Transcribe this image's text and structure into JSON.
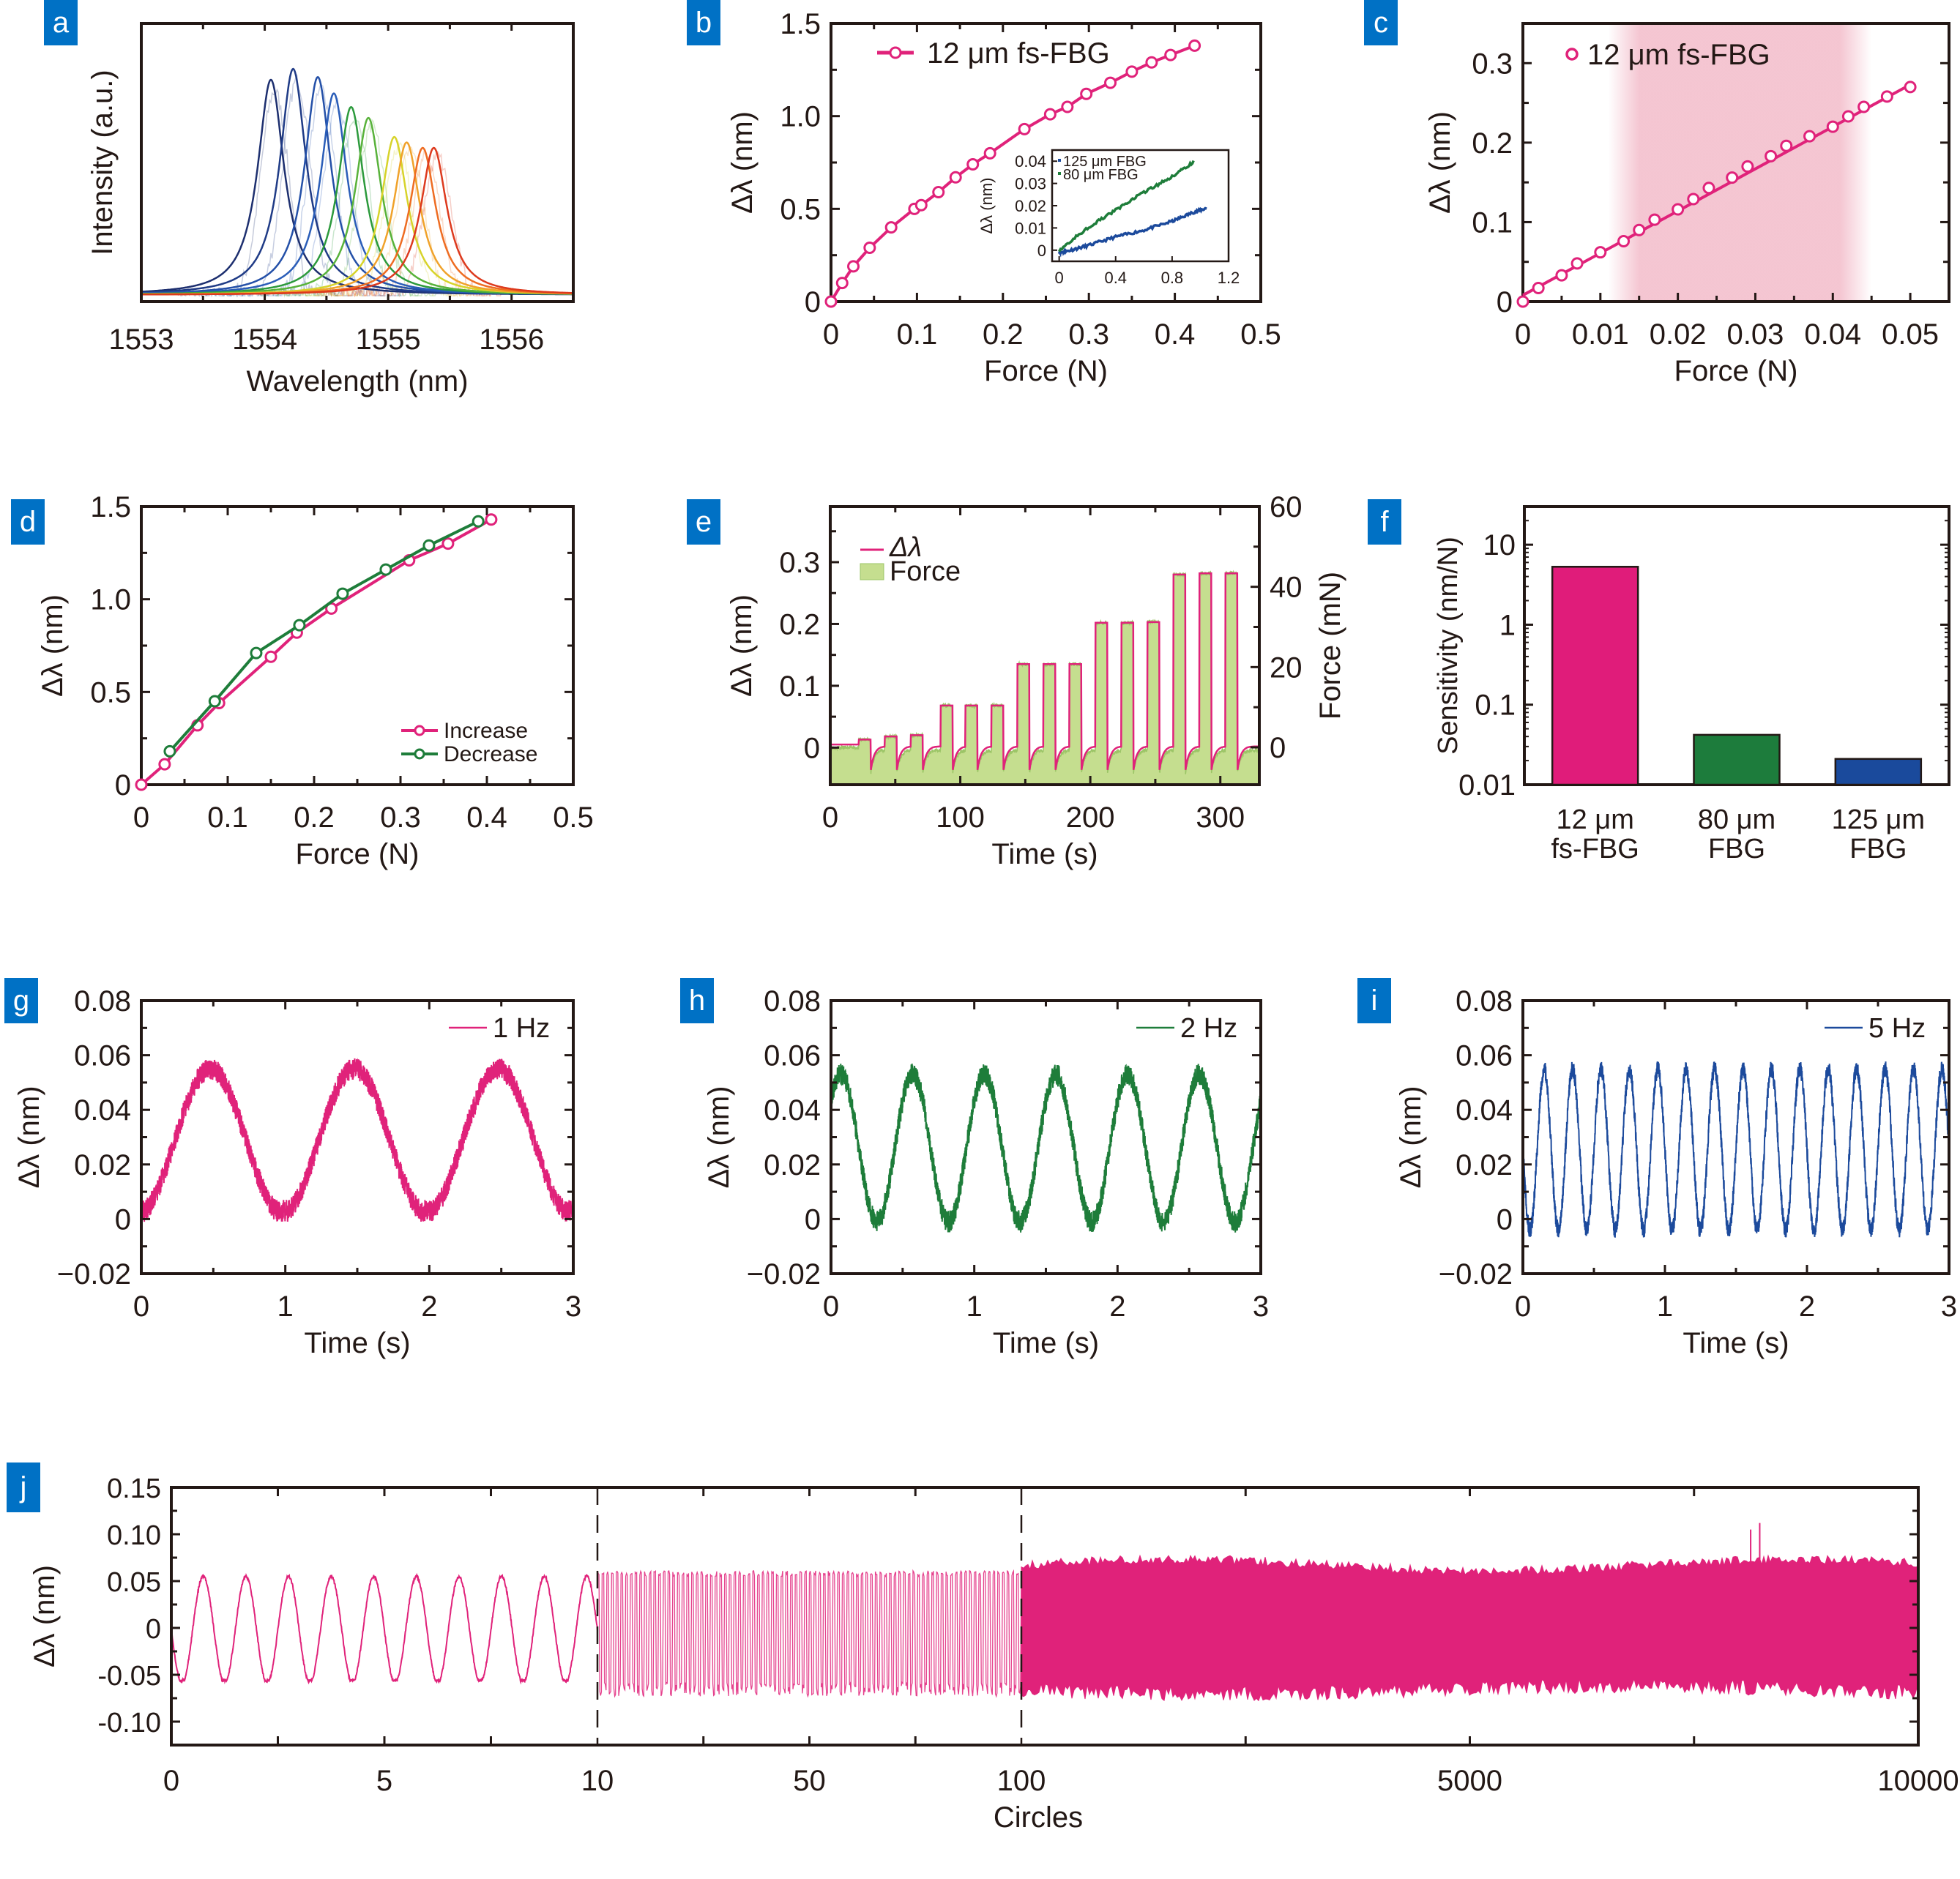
{
  "colors": {
    "badge": "#0071c5",
    "pink": "#e0227a",
    "green": "#1e7d3a",
    "blue": "#1c4a9c",
    "force_fill": "#c5de8f",
    "force_edge": "#9cc567",
    "axis": "#231815",
    "shade": "#f2b7c6"
  },
  "chart_data": [
    {
      "id": "a",
      "type": "line",
      "badge": "a",
      "title": "",
      "xlabel": "Wavelength (nm)",
      "ylabel": "Intensity (a.u.)",
      "xlim": [
        1553,
        1556.5
      ],
      "ylim": [
        0,
        1.0
      ],
      "xticks": [
        1553,
        1554,
        1555,
        1556
      ],
      "xtick_labels": [
        "1553",
        "1554",
        "1555",
        "1556"
      ],
      "yticks_shown": false,
      "series": [
        {
          "name": "spectrum-1",
          "center": 1554.05,
          "peak": 0.79,
          "color": "#1d2f6f"
        },
        {
          "name": "spectrum-2",
          "center": 1554.23,
          "peak": 0.83,
          "color": "#1f3b86"
        },
        {
          "name": "spectrum-3",
          "center": 1554.43,
          "peak": 0.8,
          "color": "#2450a8"
        },
        {
          "name": "spectrum-4",
          "center": 1554.56,
          "peak": 0.74,
          "color": "#2a5db8"
        },
        {
          "name": "spectrum-5",
          "center": 1554.7,
          "peak": 0.69,
          "color": "#2c9a3c"
        },
        {
          "name": "spectrum-6",
          "center": 1554.84,
          "peak": 0.65,
          "color": "#58b23a"
        },
        {
          "name": "spectrum-7",
          "center": 1555.05,
          "peak": 0.58,
          "color": "#d7d32a"
        },
        {
          "name": "spectrum-8",
          "center": 1555.15,
          "peak": 0.56,
          "color": "#f0a22a"
        },
        {
          "name": "spectrum-9",
          "center": 1555.28,
          "peak": 0.54,
          "color": "#ee6c22"
        },
        {
          "name": "spectrum-10",
          "center": 1555.37,
          "peak": 0.54,
          "color": "#dd3a1e"
        }
      ],
      "width_nm": 0.13
    },
    {
      "id": "b",
      "type": "line",
      "badge": "b",
      "xlabel": "Force (N)",
      "ylabel": "Δλ (nm)",
      "xlim": [
        0,
        0.5
      ],
      "ylim": [
        0,
        1.5
      ],
      "xticks": [
        0,
        0.1,
        0.2,
        0.3,
        0.4,
        0.5
      ],
      "xtick_labels": [
        "0",
        "0.1",
        "0.2",
        "0.3",
        "0.4",
        "0.5"
      ],
      "yticks": [
        0,
        0.5,
        1.0,
        1.5
      ],
      "ytick_labels": [
        "0",
        "0.5",
        "1.0",
        "1.5"
      ],
      "legend": {
        "label": "12 μm fs-FBG",
        "position": "top-left"
      },
      "series": [
        {
          "name": "12 μm fs-FBG",
          "x": [
            0,
            0.013,
            0.026,
            0.045,
            0.07,
            0.097,
            0.105,
            0.125,
            0.145,
            0.165,
            0.185,
            0.225,
            0.255,
            0.275,
            0.297,
            0.325,
            0.35,
            0.373,
            0.395,
            0.423
          ],
          "y": [
            0,
            0.1,
            0.19,
            0.29,
            0.4,
            0.5,
            0.52,
            0.59,
            0.67,
            0.74,
            0.8,
            0.93,
            1.01,
            1.05,
            1.12,
            1.18,
            1.24,
            1.29,
            1.33,
            1.38
          ]
        }
      ],
      "inset": {
        "xlabel": "",
        "ylabel": "Δλ (nm)",
        "xlim": [
          -0.05,
          1.2
        ],
        "ylim": [
          -0.005,
          0.045
        ],
        "xticks": [
          0,
          0.4,
          0.8,
          1.2
        ],
        "xtick_labels": [
          "0",
          "0.4",
          "0.8",
          "1.2"
        ],
        "yticks": [
          0,
          0.01,
          0.02,
          0.03,
          0.04
        ],
        "ytick_labels": [
          "0",
          "0.01",
          "0.02",
          "0.03",
          "0.04"
        ],
        "legend": [
          {
            "label": "125 μm FBG",
            "color": "#1c4a9c"
          },
          {
            "label": "80 μm FBG",
            "color": "#1e7d3a"
          }
        ],
        "series": [
          {
            "name": "125 μm FBG",
            "x": [
              0,
              0.05,
              0.2,
              0.4,
              0.6,
              0.8,
              0.95,
              1.05
            ],
            "y": [
              -0.001,
              -0.0005,
              0.002,
              0.006,
              0.009,
              0.013,
              0.017,
              0.019
            ]
          },
          {
            "name": "80 μm FBG",
            "x": [
              0,
              0.2,
              0.4,
              0.6,
              0.8,
              0.96
            ],
            "y": [
              0,
              0.01,
              0.018,
              0.026,
              0.033,
              0.04
            ]
          }
        ]
      }
    },
    {
      "id": "c",
      "type": "scatter",
      "badge": "c",
      "xlabel": "Force (N)",
      "ylabel": "Δλ (nm)",
      "xlim": [
        0,
        0.055
      ],
      "ylim": [
        0,
        0.35
      ],
      "xticks": [
        0,
        0.01,
        0.02,
        0.03,
        0.04,
        0.05
      ],
      "xtick_labels": [
        "0",
        "0.01",
        "0.02",
        "0.03",
        "0.04",
        "0.05"
      ],
      "yticks": [
        0,
        0.1,
        0.2,
        0.3
      ],
      "ytick_labels": [
        "0",
        "0.1",
        "0.2",
        "0.3"
      ],
      "legend": {
        "label": "12 μm fs-FBG",
        "position": "top-left"
      },
      "shaded_region": [
        0.011,
        0.045
      ],
      "fit": {
        "slope": 5.3,
        "intercept": 0.008
      },
      "series": [
        {
          "name": "12 μm fs-FBG",
          "x": [
            0,
            0.002,
            0.005,
            0.007,
            0.01,
            0.013,
            0.015,
            0.017,
            0.02,
            0.022,
            0.024,
            0.027,
            0.029,
            0.032,
            0.034,
            0.037,
            0.04,
            0.042,
            0.044,
            0.047,
            0.05
          ],
          "y": [
            0,
            0.017,
            0.033,
            0.048,
            0.062,
            0.076,
            0.09,
            0.103,
            0.116,
            0.129,
            0.143,
            0.156,
            0.17,
            0.183,
            0.196,
            0.208,
            0.22,
            0.233,
            0.245,
            0.258,
            0.27
          ]
        }
      ]
    },
    {
      "id": "d",
      "type": "line",
      "badge": "d",
      "xlabel": "Force (N)",
      "ylabel": "Δλ (nm)",
      "xlim": [
        0,
        0.5
      ],
      "ylim": [
        0,
        1.5
      ],
      "xticks": [
        0,
        0.1,
        0.2,
        0.3,
        0.4,
        0.5
      ],
      "xtick_labels": [
        "0",
        "0.1",
        "0.2",
        "0.3",
        "0.4",
        "0.5"
      ],
      "yticks": [
        0,
        0.5,
        1.0,
        1.5
      ],
      "ytick_labels": [
        "0",
        "0.5",
        "1.0",
        "1.5"
      ],
      "legend_position": "bottom-right",
      "series": [
        {
          "name": "Increase",
          "color": "#e0227a",
          "x": [
            0,
            0.027,
            0.065,
            0.09,
            0.15,
            0.18,
            0.22,
            0.31,
            0.355,
            0.405
          ],
          "y": [
            0,
            0.11,
            0.32,
            0.44,
            0.69,
            0.82,
            0.95,
            1.21,
            1.3,
            1.43
          ]
        },
        {
          "name": "Decrease",
          "color": "#1e7d3a",
          "x": [
            0.033,
            0.085,
            0.133,
            0.183,
            0.233,
            0.283,
            0.333,
            0.39
          ],
          "y": [
            0.18,
            0.45,
            0.71,
            0.86,
            1.03,
            1.16,
            1.29,
            1.42
          ]
        }
      ]
    },
    {
      "id": "e",
      "type": "area",
      "badge": "e",
      "xlabel": "Time (s)",
      "ylabel": "Δλ (nm)",
      "ylabel_right": "Force (mN)",
      "xlim": [
        0,
        330
      ],
      "ylim": [
        -0.06,
        0.39
      ],
      "ylim_right": [
        -9.3,
        60
      ],
      "xticks": [
        0,
        100,
        200,
        300
      ],
      "xtick_labels": [
        "0",
        "100",
        "200",
        "300"
      ],
      "yticks": [
        0,
        0.1,
        0.2,
        0.3
      ],
      "ytick_labels": [
        "0",
        "0.1",
        "0.2",
        "0.3"
      ],
      "yticks_right": [
        0,
        20,
        40,
        60
      ],
      "ytick_labels_right": [
        "0",
        "20",
        "40",
        "60"
      ],
      "legend": [
        {
          "label": "Δλ",
          "color": "#e0227a",
          "kind": "line"
        },
        {
          "label": "Force",
          "color": "#2e8a3c",
          "kind": "fill"
        }
      ],
      "pulses": [
        {
          "start": 22,
          "end": 31,
          "value": 0.013
        },
        {
          "start": 42,
          "end": 51,
          "value": 0.018
        },
        {
          "start": 62,
          "end": 71,
          "value": 0.02
        },
        {
          "start": 85,
          "end": 94,
          "value": 0.068
        },
        {
          "start": 104,
          "end": 113,
          "value": 0.068
        },
        {
          "start": 124,
          "end": 133,
          "value": 0.068
        },
        {
          "start": 144,
          "end": 153,
          "value": 0.135
        },
        {
          "start": 164,
          "end": 173,
          "value": 0.135
        },
        {
          "start": 184,
          "end": 193,
          "value": 0.135
        },
        {
          "start": 204,
          "end": 213,
          "value": 0.202
        },
        {
          "start": 224,
          "end": 233,
          "value": 0.202
        },
        {
          "start": 244,
          "end": 253,
          "value": 0.203
        },
        {
          "start": 264,
          "end": 273,
          "value": 0.28
        },
        {
          "start": 284,
          "end": 293,
          "value": 0.282
        },
        {
          "start": 304,
          "end": 313,
          "value": 0.282
        }
      ]
    },
    {
      "id": "f",
      "type": "bar",
      "badge": "f",
      "xlabel": "",
      "ylabel": "Sensitivity (nm/N)",
      "yscale": "log",
      "ylim": [
        0.01,
        30
      ],
      "yticks": [
        0.01,
        0.1,
        1,
        10
      ],
      "ytick_labels": [
        "0.01",
        "0.1",
        "1",
        "10"
      ],
      "categories": [
        "12 μm fs-FBG",
        "80 μm FBG",
        "125 μm FBG"
      ],
      "category_lines": [
        [
          "12 μm",
          "fs-FBG"
        ],
        [
          "80 μm",
          "FBG"
        ],
        [
          "125 μm",
          "FBG"
        ]
      ],
      "values": [
        5.3,
        0.042,
        0.021
      ],
      "bar_colors": [
        "#e01c7a",
        "#1d7c3c",
        "#1a4a9c"
      ]
    },
    {
      "id": "g",
      "type": "line",
      "badge": "g",
      "xlabel": "Time (s)",
      "ylabel": "Δλ (nm)",
      "xlim": [
        0,
        3
      ],
      "ylim": [
        -0.02,
        0.08
      ],
      "xticks": [
        0,
        1,
        2,
        3
      ],
      "xtick_labels": [
        "0",
        "1",
        "2",
        "3"
      ],
      "yticks": [
        -0.02,
        0,
        0.02,
        0.04,
        0.06,
        0.08
      ],
      "ytick_labels": [
        "−0.02",
        "0",
        "0.02",
        "0.04",
        "0.06",
        "0.08"
      ],
      "legend": {
        "label": "1 Hz",
        "position": "top-right"
      },
      "signal": {
        "frequency_hz": 1,
        "min": 0.002,
        "max": 0.055,
        "phase_peak_s": 0.48,
        "noise": 0.004,
        "color": "#e0227a"
      }
    },
    {
      "id": "h",
      "type": "line",
      "badge": "h",
      "xlabel": "Time (s)",
      "ylabel": "Δλ (nm)",
      "xlim": [
        0,
        3
      ],
      "ylim": [
        -0.02,
        0.08
      ],
      "xticks": [
        0,
        1,
        2,
        3
      ],
      "xtick_labels": [
        "0",
        "1",
        "2",
        "3"
      ],
      "yticks": [
        -0.02,
        0,
        0.02,
        0.04,
        0.06,
        0.08
      ],
      "ytick_labels": [
        "−0.02",
        "0",
        "0.02",
        "0.04",
        "0.06",
        "0.08"
      ],
      "legend": {
        "label": "2 Hz",
        "position": "top-right"
      },
      "signal": {
        "frequency_hz": 2,
        "min": -0.001,
        "max": 0.053,
        "phase_peak_s": 0.07,
        "noise": 0.004,
        "color": "#1e7d3a"
      }
    },
    {
      "id": "i",
      "type": "line",
      "badge": "i",
      "xlabel": "Time (s)",
      "ylabel": "Δλ (nm)",
      "xlim": [
        0,
        3
      ],
      "ylim": [
        -0.02,
        0.08
      ],
      "xticks": [
        0,
        1,
        2,
        3
      ],
      "xtick_labels": [
        "0",
        "1",
        "2",
        "3"
      ],
      "yticks": [
        -0.02,
        0,
        0.02,
        0.04,
        0.06,
        0.08
      ],
      "ytick_labels": [
        "−0.02",
        "0",
        "0.02",
        "0.04",
        "0.06",
        "0.08"
      ],
      "legend": {
        "label": "5 Hz",
        "position": "top-right"
      },
      "signal": {
        "frequency_hz": 5,
        "min": -0.004,
        "max": 0.055,
        "phase_peak_s": 0.15,
        "noise": 0.003,
        "color": "#1c4a9c"
      }
    },
    {
      "id": "j",
      "type": "line",
      "badge": "j",
      "xlabel": "Circles",
      "ylabel": "Δλ (nm)",
      "ylim": [
        -0.125,
        0.15
      ],
      "yticks": [
        -0.1,
        -0.05,
        0,
        0.05,
        0.1,
        0.15
      ],
      "ytick_labels": [
        "-0.10",
        "-0.05",
        "0",
        "0.05",
        "0.10",
        "0.15"
      ],
      "xtick_labels": [
        "0",
        "5",
        "10",
        "50",
        "100",
        "5000",
        "10000"
      ],
      "segments": [
        {
          "range": [
            0,
            10
          ],
          "cycles": 10,
          "min": -0.055,
          "max": 0.055,
          "tick_labels": [
            "0",
            "5",
            "10"
          ]
        },
        {
          "range": [
            10,
            100
          ],
          "cycles": 90,
          "min": -0.06,
          "max": 0.06,
          "tick_labels": [
            "10",
            "50",
            "100"
          ]
        },
        {
          "range": [
            100,
            10000
          ],
          "cycles": 9900,
          "min": -0.06,
          "max": 0.07,
          "tick_labels": [
            "100",
            "5000",
            "10000"
          ]
        }
      ],
      "segment_dividers": [
        10,
        100
      ],
      "spikes": [
        {
          "circle": 8150,
          "value": 0.105
        },
        {
          "circle": 8250,
          "value": 0.112
        }
      ]
    }
  ]
}
